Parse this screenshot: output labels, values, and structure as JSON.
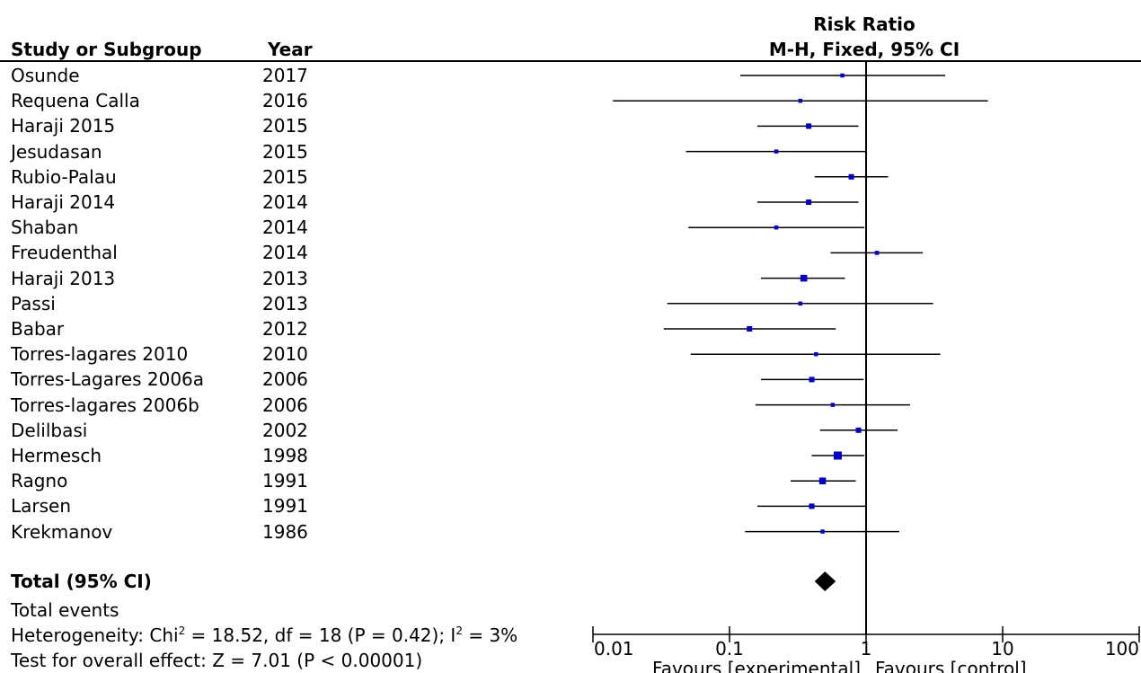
{
  "header": {
    "study_col": "Study or Subgroup",
    "year_col": "Year",
    "risk_ratio_line1": "Risk Ratio",
    "risk_ratio_line2": "M-H, Fixed, 95% CI"
  },
  "footer": {
    "total_label": "Total (95% CI)",
    "total_events": "Total events",
    "heterogeneity_pre": "Heterogeneity: Chi",
    "heterogeneity_mid": " = 18.52, df = 18 (P = 0.42); I",
    "heterogeneity_post": " = 3%",
    "sup": "2",
    "overall_effect": "Test for overall effect: Z = 7.01 (P < 0.00001)"
  },
  "colors": {
    "marker": "#0000c8",
    "line": "#000000",
    "diamond": "#000000"
  },
  "chart_data": {
    "type": "forest",
    "x_scale": "log",
    "xlim": [
      0.01,
      100
    ],
    "x_ticks": [
      {
        "value": 0.01,
        "label": "0.01"
      },
      {
        "value": 0.1,
        "label": "0.1"
      },
      {
        "value": 1,
        "label": "1"
      },
      {
        "value": 10,
        "label": "10"
      },
      {
        "value": 100,
        "label": "100"
      }
    ],
    "x_caption_left": "Favours [experimental]",
    "x_caption_right": "Favours [control]",
    "studies": [
      {
        "name": "Osunde",
        "year": "2017",
        "rr": 0.67,
        "lo": 0.12,
        "hi": 3.8,
        "weight": 1
      },
      {
        "name": "Requena Calla",
        "year": "2016",
        "rr": 0.33,
        "lo": 0.014,
        "hi": 7.8,
        "weight": 1
      },
      {
        "name": "Haraji 2015",
        "year": "2015",
        "rr": 0.38,
        "lo": 0.16,
        "hi": 0.88,
        "weight": 2
      },
      {
        "name": "Jesudasan",
        "year": "2015",
        "rr": 0.22,
        "lo": 0.048,
        "hi": 1.0,
        "weight": 1
      },
      {
        "name": "Rubio-Palau",
        "year": "2015",
        "rr": 0.78,
        "lo": 0.42,
        "hi": 1.45,
        "weight": 2
      },
      {
        "name": "Haraji 2014",
        "year": "2014",
        "rr": 0.38,
        "lo": 0.16,
        "hi": 0.88,
        "weight": 2
      },
      {
        "name": "Shaban",
        "year": "2014",
        "rr": 0.22,
        "lo": 0.05,
        "hi": 0.97,
        "weight": 1
      },
      {
        "name": "Freudenthal",
        "year": "2014",
        "rr": 1.2,
        "lo": 0.55,
        "hi": 2.6,
        "weight": 1
      },
      {
        "name": "Haraji 2013",
        "year": "2013",
        "rr": 0.35,
        "lo": 0.17,
        "hi": 0.7,
        "weight": 3
      },
      {
        "name": "Passi",
        "year": "2013",
        "rr": 0.33,
        "lo": 0.035,
        "hi": 3.1,
        "weight": 1
      },
      {
        "name": "Babar",
        "year": "2012",
        "rr": 0.14,
        "lo": 0.033,
        "hi": 0.6,
        "weight": 2
      },
      {
        "name": "Torres-lagares 2010",
        "year": "2010",
        "rr": 0.43,
        "lo": 0.052,
        "hi": 3.5,
        "weight": 1
      },
      {
        "name": "Torres-Lagares 2006a",
        "year": "2006",
        "rr": 0.4,
        "lo": 0.17,
        "hi": 0.96,
        "weight": 2
      },
      {
        "name": "Torres-lagares 2006b",
        "year": "2006",
        "rr": 0.57,
        "lo": 0.155,
        "hi": 2.1,
        "weight": 1
      },
      {
        "name": "Delilbasi",
        "year": "2002",
        "rr": 0.88,
        "lo": 0.46,
        "hi": 1.7,
        "weight": 2
      },
      {
        "name": "Hermesch",
        "year": "1998",
        "rr": 0.62,
        "lo": 0.4,
        "hi": 0.97,
        "weight": 4
      },
      {
        "name": "Ragno",
        "year": "1991",
        "rr": 0.48,
        "lo": 0.28,
        "hi": 0.84,
        "weight": 3
      },
      {
        "name": "Larsen",
        "year": "1991",
        "rr": 0.4,
        "lo": 0.16,
        "hi": 1.0,
        "weight": 2
      },
      {
        "name": "Krekmanov",
        "year": "1986",
        "rr": 0.48,
        "lo": 0.13,
        "hi": 1.75,
        "weight": 1
      }
    ],
    "total": {
      "rr": 0.5,
      "lo": 0.42,
      "hi": 0.6
    }
  }
}
